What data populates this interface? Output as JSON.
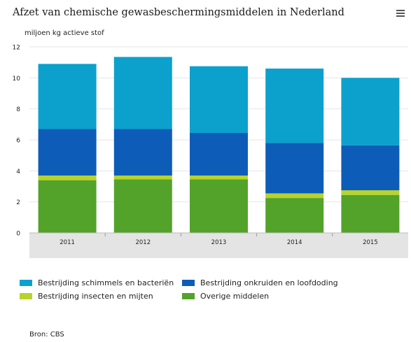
{
  "header": {
    "title": "Afzet van chemische gewasbeschermingsmiddelen in Nederland",
    "menu_icon": "hamburger-menu-icon"
  },
  "source": "Bron: CBS",
  "colors": {
    "schimmels": "#0ca1cd",
    "onkruiden": "#0d5db8",
    "insecten": "#b7d42a",
    "overige": "#53a32a",
    "xaxis_band": "#e4e4e4",
    "gridline": "#e6e6e6"
  },
  "chart_data": {
    "type": "bar",
    "stacked": true,
    "categories": [
      "2011",
      "2012",
      "2013",
      "2014",
      "2015"
    ],
    "series": [
      {
        "name": "Overige middelen",
        "color": "#53a32a",
        "values": [
          3.4,
          3.45,
          3.45,
          2.25,
          2.45
        ]
      },
      {
        "name": "Bestrijding insecten en mijten",
        "color": "#b7d42a",
        "values": [
          0.3,
          0.25,
          0.25,
          0.3,
          0.3
        ]
      },
      {
        "name": "Bestrijding onkruiden en loofdoding",
        "color": "#0d5db8",
        "values": [
          3.0,
          3.0,
          2.75,
          3.25,
          2.9
        ]
      },
      {
        "name": "Bestrijding schimmels en bacteriën",
        "color": "#0ca1cd",
        "values": [
          4.2,
          4.65,
          4.3,
          4.8,
          4.35
        ]
      }
    ],
    "ylabel": "miljoen kg actieve stof",
    "ylim": [
      0,
      12
    ],
    "yticks": [
      0,
      2,
      4,
      6,
      8,
      10,
      12
    ],
    "grid": true,
    "legend_position": "bottom"
  }
}
